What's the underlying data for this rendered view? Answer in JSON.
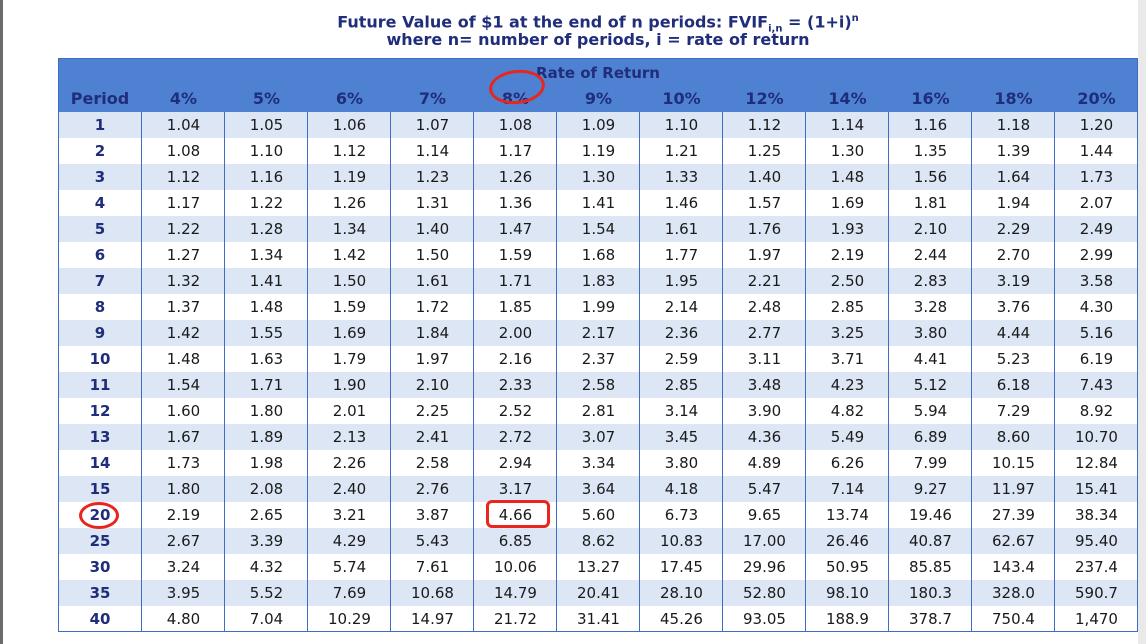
{
  "title": {
    "line1_prefix": "Future Value of $1 at the end of n periods: FVIF",
    "line1_sub": "i,n",
    "line1_mid": " = (1+i)",
    "line1_sup": "n",
    "line2": "where n= number of periods, i = rate of return"
  },
  "table": {
    "group_header": "Rate of Return",
    "period_header": "Period",
    "rate_headers": [
      "4%",
      "5%",
      "6%",
      "7%",
      "8%",
      "9%",
      "10%",
      "12%",
      "14%",
      "16%",
      "18%",
      "20%"
    ],
    "rows": [
      {
        "period": "1",
        "values": [
          "1.04",
          "1.05",
          "1.06",
          "1.07",
          "1.08",
          "1.09",
          "1.10",
          "1.12",
          "1.14",
          "1.16",
          "1.18",
          "1.20"
        ]
      },
      {
        "period": "2",
        "values": [
          "1.08",
          "1.10",
          "1.12",
          "1.14",
          "1.17",
          "1.19",
          "1.21",
          "1.25",
          "1.30",
          "1.35",
          "1.39",
          "1.44"
        ]
      },
      {
        "period": "3",
        "values": [
          "1.12",
          "1.16",
          "1.19",
          "1.23",
          "1.26",
          "1.30",
          "1.33",
          "1.40",
          "1.48",
          "1.56",
          "1.64",
          "1.73"
        ]
      },
      {
        "period": "4",
        "values": [
          "1.17",
          "1.22",
          "1.26",
          "1.31",
          "1.36",
          "1.41",
          "1.46",
          "1.57",
          "1.69",
          "1.81",
          "1.94",
          "2.07"
        ]
      },
      {
        "period": "5",
        "values": [
          "1.22",
          "1.28",
          "1.34",
          "1.40",
          "1.47",
          "1.54",
          "1.61",
          "1.76",
          "1.93",
          "2.10",
          "2.29",
          "2.49"
        ]
      },
      {
        "period": "6",
        "values": [
          "1.27",
          "1.34",
          "1.42",
          "1.50",
          "1.59",
          "1.68",
          "1.77",
          "1.97",
          "2.19",
          "2.44",
          "2.70",
          "2.99"
        ]
      },
      {
        "period": "7",
        "values": [
          "1.32",
          "1.41",
          "1.50",
          "1.61",
          "1.71",
          "1.83",
          "1.95",
          "2.21",
          "2.50",
          "2.83",
          "3.19",
          "3.58"
        ]
      },
      {
        "period": "8",
        "values": [
          "1.37",
          "1.48",
          "1.59",
          "1.72",
          "1.85",
          "1.99",
          "2.14",
          "2.48",
          "2.85",
          "3.28",
          "3.76",
          "4.30"
        ]
      },
      {
        "period": "9",
        "values": [
          "1.42",
          "1.55",
          "1.69",
          "1.84",
          "2.00",
          "2.17",
          "2.36",
          "2.77",
          "3.25",
          "3.80",
          "4.44",
          "5.16"
        ]
      },
      {
        "period": "10",
        "values": [
          "1.48",
          "1.63",
          "1.79",
          "1.97",
          "2.16",
          "2.37",
          "2.59",
          "3.11",
          "3.71",
          "4.41",
          "5.23",
          "6.19"
        ]
      },
      {
        "period": "11",
        "values": [
          "1.54",
          "1.71",
          "1.90",
          "2.10",
          "2.33",
          "2.58",
          "2.85",
          "3.48",
          "4.23",
          "5.12",
          "6.18",
          "7.43"
        ]
      },
      {
        "period": "12",
        "values": [
          "1.60",
          "1.80",
          "2.01",
          "2.25",
          "2.52",
          "2.81",
          "3.14",
          "3.90",
          "4.82",
          "5.94",
          "7.29",
          "8.92"
        ]
      },
      {
        "period": "13",
        "values": [
          "1.67",
          "1.89",
          "2.13",
          "2.41",
          "2.72",
          "3.07",
          "3.45",
          "4.36",
          "5.49",
          "6.89",
          "8.60",
          "10.70"
        ]
      },
      {
        "period": "14",
        "values": [
          "1.73",
          "1.98",
          "2.26",
          "2.58",
          "2.94",
          "3.34",
          "3.80",
          "4.89",
          "6.26",
          "7.99",
          "10.15",
          "12.84"
        ]
      },
      {
        "period": "15",
        "values": [
          "1.80",
          "2.08",
          "2.40",
          "2.76",
          "3.17",
          "3.64",
          "4.18",
          "5.47",
          "7.14",
          "9.27",
          "11.97",
          "15.41"
        ]
      },
      {
        "period": "20",
        "values": [
          "2.19",
          "2.65",
          "3.21",
          "3.87",
          "4.66",
          "5.60",
          "6.73",
          "9.65",
          "13.74",
          "19.46",
          "27.39",
          "38.34"
        ]
      },
      {
        "period": "25",
        "values": [
          "2.67",
          "3.39",
          "4.29",
          "5.43",
          "6.85",
          "8.62",
          "10.83",
          "17.00",
          "26.46",
          "40.87",
          "62.67",
          "95.40"
        ]
      },
      {
        "period": "30",
        "values": [
          "3.24",
          "4.32",
          "5.74",
          "7.61",
          "10.06",
          "13.27",
          "17.45",
          "29.96",
          "50.95",
          "85.85",
          "143.4",
          "237.4"
        ]
      },
      {
        "period": "35",
        "values": [
          "3.95",
          "5.52",
          "7.69",
          "10.68",
          "14.79",
          "20.41",
          "28.10",
          "52.80",
          "98.10",
          "180.3",
          "328.0",
          "590.7"
        ]
      },
      {
        "period": "40",
        "values": [
          "4.80",
          "7.04",
          "10.29",
          "14.97",
          "21.72",
          "31.41",
          "45.26",
          "93.05",
          "188.9",
          "378.7",
          "750.4",
          "1,470"
        ]
      }
    ]
  },
  "annotations": {
    "color": "#e8261e",
    "circled_header": "8%",
    "circled_period": "20",
    "boxed_value": "4.66"
  },
  "colors": {
    "header_bg": "#4f81d3",
    "alt_row_bg": "#dce6f5",
    "title_text": "#1f2d7a"
  }
}
